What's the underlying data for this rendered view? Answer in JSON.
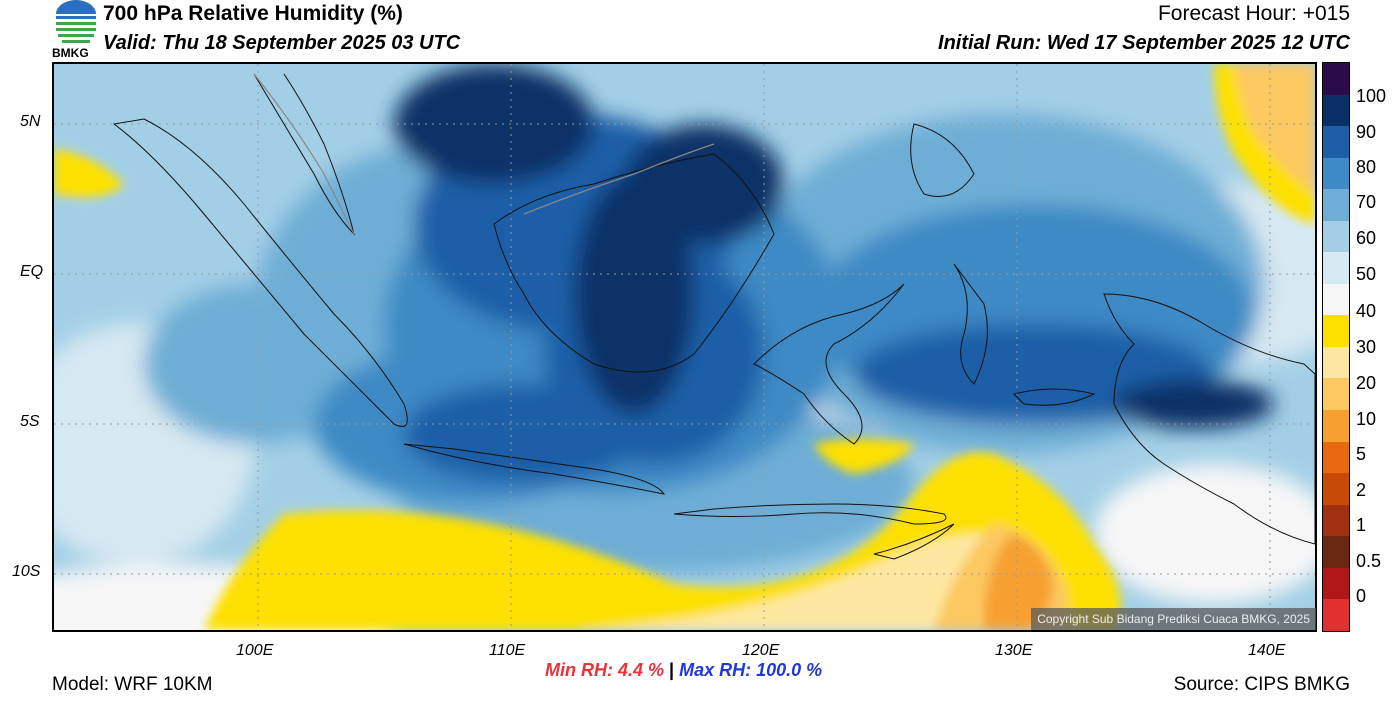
{
  "header": {
    "title": "700 hPa Relative Humidity (%)",
    "valid": "Valid: Thu 18 September 2025 03 UTC",
    "forecast_hour": "Forecast Hour: +015",
    "initial_run": "Initial Run: Wed 17 September 2025 12 UTC",
    "logo_text": "BMKG"
  },
  "map": {
    "lat_labels": [
      "5N",
      "EQ",
      "5S",
      "10S"
    ],
    "lon_labels": [
      "100E",
      "110E",
      "120E",
      "130E",
      "140E"
    ],
    "copyright": "Copyright Sub Bidang Prediksi Cuaca BMKG, 2025"
  },
  "colorbar": {
    "labels": [
      "100",
      "90",
      "80",
      "70",
      "60",
      "50",
      "40",
      "30",
      "20",
      "10",
      "5",
      "2",
      "1",
      "0.5",
      "0"
    ],
    "colors": [
      "#2a0c4a",
      "#0a3068",
      "#1e5ea8",
      "#3d8ac4",
      "#6eaed6",
      "#a3cfe6",
      "#d6e8f2",
      "#f6f6f6",
      "#fde000",
      "#fde7a0",
      "#fcc860",
      "#f6a030",
      "#e86810",
      "#c84a08",
      "#a03010",
      "#6a2810",
      "#b01818",
      "#e03030"
    ]
  },
  "stats": {
    "min_label": "Min RH:",
    "min_value": "4.4 %",
    "separator": "|",
    "max_label": "Max RH:",
    "max_value": "100.0 %"
  },
  "footer": {
    "model": "Model: WRF 10KM",
    "source": "Source: CIPS BMKG"
  }
}
